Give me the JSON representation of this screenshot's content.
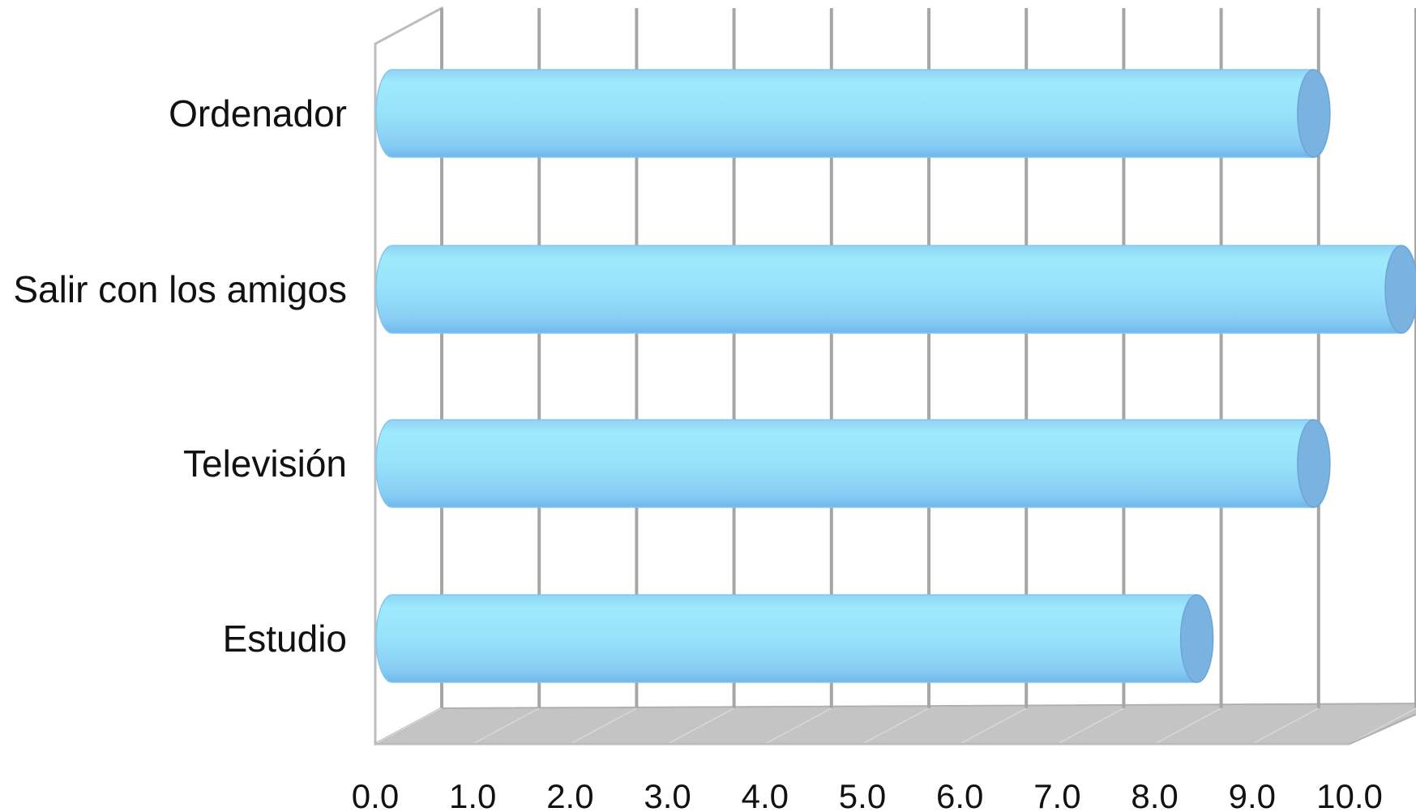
{
  "chart_data": {
    "type": "bar",
    "orientation": "horizontal",
    "style": "3d-cylinder",
    "title": "",
    "xlabel": "",
    "ylabel": "",
    "categories": [
      "Ordenador",
      "Salir con los amigos",
      "Televisión",
      "Estudio"
    ],
    "values": [
      9.3,
      10.2,
      9.3,
      8.1
    ],
    "xlim": [
      0,
      10
    ],
    "x_ticks": [
      "0.0",
      "1.0",
      "2.0",
      "3.0",
      "4.0",
      "5.0",
      "6.0",
      "7.0",
      "8.0",
      "9.0",
      "10.0"
    ],
    "grid": true,
    "legend": "none",
    "colors": {
      "bar_light": "#9eeafc",
      "bar_mid": "#8fd8f8",
      "bar_dark": "#6fb8ea",
      "bar_cap": "#7ab2e0",
      "grid": "#a6a6a6",
      "floor": "#c4c4c4"
    }
  }
}
